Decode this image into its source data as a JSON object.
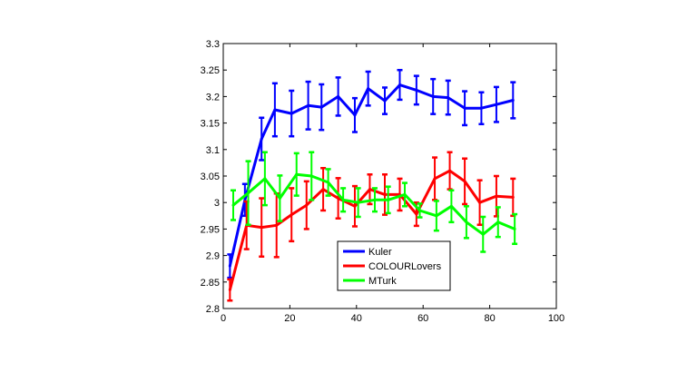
{
  "chart_data": {
    "type": "line",
    "title": "",
    "xlabel": "",
    "ylabel": "",
    "xlim": [
      0,
      100
    ],
    "ylim": [
      2.8,
      3.3
    ],
    "xticks": [
      0,
      20,
      40,
      60,
      80,
      100
    ],
    "yticks": [
      2.8,
      2.85,
      2.9,
      2.95,
      3,
      3.05,
      3.1,
      3.15,
      3.2,
      3.25,
      3.3
    ],
    "xtick_labels": [
      "0",
      "20",
      "40",
      "60",
      "80",
      "100"
    ],
    "ytick_labels": [
      "2.8",
      "2.85",
      "2.9",
      "2.95",
      "3",
      "3.05",
      "3.1",
      "3.15",
      "3.2",
      "3.25",
      "3.3"
    ],
    "grid": false,
    "legend_position": "bottom-center",
    "series": [
      {
        "name": "Kuler",
        "color": "#0000ff",
        "x": [
          2,
          6.5,
          11.5,
          15.5,
          20.5,
          25.5,
          29.5,
          34.5,
          39.5,
          43.5,
          48.5,
          53,
          58,
          63,
          67.5,
          72.5,
          77.5,
          82,
          87
        ],
        "y": [
          2.88,
          3.005,
          3.12,
          3.175,
          3.168,
          3.183,
          3.18,
          3.2,
          3.165,
          3.215,
          3.192,
          3.222,
          3.212,
          3.2,
          3.198,
          3.178,
          3.178,
          3.185,
          3.193
        ],
        "err": [
          0.022,
          0.03,
          0.04,
          0.05,
          0.043,
          0.045,
          0.043,
          0.036,
          0.032,
          0.032,
          0.025,
          0.028,
          0.027,
          0.033,
          0.032,
          0.032,
          0.03,
          0.033,
          0.034
        ]
      },
      {
        "name": "COLOURLovers",
        "color": "#ff0000",
        "x": [
          2,
          7,
          11.5,
          16,
          20.5,
          25,
          30,
          34.5,
          39.5,
          44,
          48.5,
          53,
          58,
          63.5,
          68,
          72.5,
          77,
          82,
          87
        ],
        "y": [
          2.835,
          2.957,
          2.953,
          2.957,
          2.977,
          2.995,
          3.025,
          3.008,
          2.993,
          3.025,
          3.015,
          3.015,
          2.978,
          3.045,
          3.06,
          3.04,
          3.0,
          3.012,
          3.01
        ],
        "err": [
          0.02,
          0.045,
          0.055,
          0.06,
          0.05,
          0.045,
          0.04,
          0.038,
          0.038,
          0.028,
          0.038,
          0.03,
          0.022,
          0.04,
          0.035,
          0.043,
          0.042,
          0.038,
          0.035
        ]
      },
      {
        "name": "MTurk",
        "color": "#00ff00",
        "x": [
          3,
          7.5,
          12.5,
          17,
          22,
          26.5,
          31.5,
          36,
          40.5,
          45.5,
          49.5,
          54.5,
          59,
          64,
          68.5,
          73,
          78,
          82.5,
          87.5
        ],
        "y": [
          2.995,
          3.018,
          3.045,
          3.008,
          3.053,
          3.05,
          3.038,
          3.005,
          3.0,
          3.005,
          3.005,
          3.015,
          2.985,
          2.975,
          2.993,
          2.963,
          2.94,
          2.963,
          2.95
        ],
        "err": [
          0.028,
          0.06,
          0.05,
          0.043,
          0.04,
          0.045,
          0.025,
          0.022,
          0.027,
          0.022,
          0.025,
          0.022,
          0.013,
          0.028,
          0.03,
          0.03,
          0.033,
          0.028,
          0.028
        ]
      }
    ]
  }
}
